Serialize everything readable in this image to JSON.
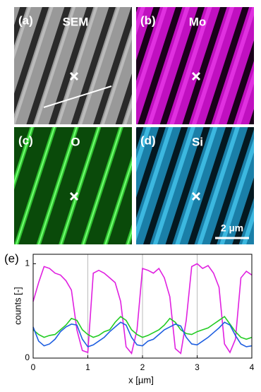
{
  "panels": [
    {
      "label": "(a)",
      "title": "SEM"
    },
    {
      "label": "(b)",
      "title": "Mo"
    },
    {
      "label": "(c)",
      "title": "O"
    },
    {
      "label": "(d)",
      "title": "Si"
    }
  ],
  "scale_bar": "2 µm",
  "chart_data": {
    "type": "line",
    "panel_label": "(e)",
    "x_label": "x [µm]",
    "y_label": "counts [-]",
    "x": [
      0,
      0.1,
      0.2,
      0.3,
      0.4,
      0.5,
      0.6,
      0.7,
      0.8,
      0.9,
      1,
      1.1,
      1.2,
      1.3,
      1.4,
      1.5,
      1.6,
      1.7,
      1.8,
      1.9,
      2,
      2.1,
      2.2,
      2.3,
      2.4,
      2.5,
      2.6,
      2.7,
      2.8,
      2.9,
      3,
      3.1,
      3.2,
      3.3,
      3.4,
      3.5,
      3.6,
      3.7,
      3.8,
      3.9,
      4
    ],
    "series": [
      {
        "color": "#e020e0",
        "values": [
          0.6,
          0.8,
          0.97,
          0.95,
          0.9,
          0.88,
          0.82,
          0.72,
          0.3,
          0.08,
          0.06,
          0.9,
          0.93,
          0.9,
          0.85,
          0.8,
          0.6,
          0.12,
          0.05,
          0.3,
          0.95,
          0.93,
          0.9,
          0.95,
          0.85,
          0.65,
          0.1,
          0.05,
          0.4,
          0.97,
          1.0,
          0.95,
          0.98,
          0.9,
          0.75,
          0.15,
          0.06,
          0.2,
          0.85,
          0.92,
          0.88
        ]
      },
      {
        "color": "#22cc22",
        "values": [
          0.3,
          0.25,
          0.22,
          0.24,
          0.25,
          0.3,
          0.35,
          0.42,
          0.4,
          0.3,
          0.25,
          0.22,
          0.24,
          0.28,
          0.3,
          0.38,
          0.44,
          0.4,
          0.3,
          0.25,
          0.22,
          0.24,
          0.27,
          0.3,
          0.35,
          0.42,
          0.38,
          0.3,
          0.26,
          0.25,
          0.28,
          0.3,
          0.32,
          0.36,
          0.4,
          0.44,
          0.36,
          0.28,
          0.22,
          0.2,
          0.22
        ]
      },
      {
        "color": "#1f5fe0",
        "values": [
          0.33,
          0.18,
          0.13,
          0.15,
          0.2,
          0.28,
          0.33,
          0.36,
          0.35,
          0.2,
          0.12,
          0.14,
          0.18,
          0.22,
          0.28,
          0.33,
          0.38,
          0.35,
          0.22,
          0.14,
          0.13,
          0.18,
          0.2,
          0.25,
          0.3,
          0.33,
          0.36,
          0.34,
          0.22,
          0.15,
          0.14,
          0.18,
          0.22,
          0.27,
          0.32,
          0.38,
          0.35,
          0.24,
          0.15,
          0.12,
          0.13
        ]
      }
    ],
    "xlim": [
      0,
      4
    ],
    "xticks": [
      0,
      1,
      2,
      3,
      4
    ],
    "ylim": [
      0,
      1.1
    ],
    "yticks": [
      0,
      1
    ],
    "grid": true
  }
}
